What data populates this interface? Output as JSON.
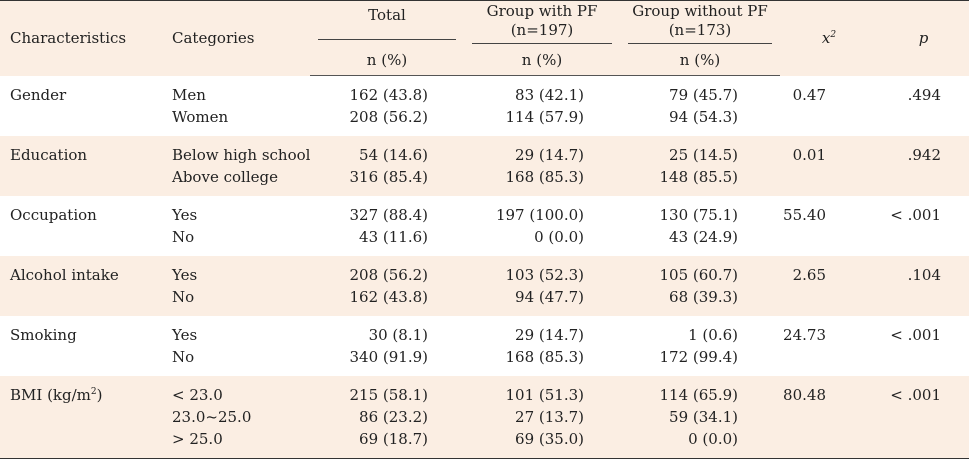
{
  "headers": {
    "characteristics": "Characteristics",
    "categories": "Categories",
    "total": "Total",
    "group_pf_line1": "Group with PF",
    "group_pf_line2": "(n=197)",
    "group_npf_line1": "Group without PF",
    "group_npf_line2": "(n=173)",
    "chi_base": "x",
    "chi_sup": "2",
    "p": "p",
    "unit": "n (%)"
  },
  "rows": [
    {
      "characteristic": "Gender",
      "categories": [
        "Men",
        "Women"
      ],
      "total": [
        "162 (43.8)",
        "208 (56.2)"
      ],
      "pf": [
        "83 (42.1)",
        "114 (57.9)"
      ],
      "npf": [
        "79 (45.7)",
        "94 (54.3)"
      ],
      "chi": "0.47",
      "p": ".494"
    },
    {
      "characteristic": "Education",
      "categories": [
        "Below high school",
        "Above college"
      ],
      "total": [
        "54 (14.6)",
        "316 (85.4)"
      ],
      "pf": [
        "29 (14.7)",
        "168 (85.3)"
      ],
      "npf": [
        "25 (14.5)",
        "148 (85.5)"
      ],
      "chi": "0.01",
      "p": ".942"
    },
    {
      "characteristic": "Occupation",
      "categories": [
        "Yes",
        "No"
      ],
      "total": [
        "327 (88.4)",
        "43 (11.6)"
      ],
      "pf": [
        "197 (100.0)",
        "0 (0.0)"
      ],
      "npf": [
        "130 (75.1)",
        "43 (24.9)"
      ],
      "chi": "55.40",
      "p": "< .001"
    },
    {
      "characteristic": "Alcohol intake",
      "categories": [
        "Yes",
        "No"
      ],
      "total": [
        "208 (56.2)",
        "162 (43.8)"
      ],
      "pf": [
        "103 (52.3)",
        "94 (47.7)"
      ],
      "npf": [
        "105 (60.7)",
        "68 (39.3)"
      ],
      "chi": "2.65",
      "p": ".104"
    },
    {
      "characteristic": "Smoking",
      "categories": [
        "Yes",
        "No"
      ],
      "total": [
        "30 (8.1)",
        "340 (91.9)"
      ],
      "pf": [
        "29 (14.7)",
        "168 (85.3)"
      ],
      "npf": [
        "1 (0.6)",
        "172 (99.4)"
      ],
      "chi": "24.73",
      "p": "< .001"
    },
    {
      "characteristic_base": "BMI (kg/m",
      "characteristic_sup": "2",
      "characteristic_end": ")",
      "categories": [
        "< 23.0",
        "23.0~25.0",
        "> 25.0"
      ],
      "total": [
        "215 (58.1)",
        "86 (23.2)",
        "69 (18.7)"
      ],
      "pf": [
        "101 (51.3)",
        "27 (13.7)",
        "69 (35.0)"
      ],
      "npf": [
        "114 (65.9)",
        "59 (34.1)",
        "0 (0.0)"
      ],
      "chi": "80.48",
      "p": "< .001"
    }
  ]
}
